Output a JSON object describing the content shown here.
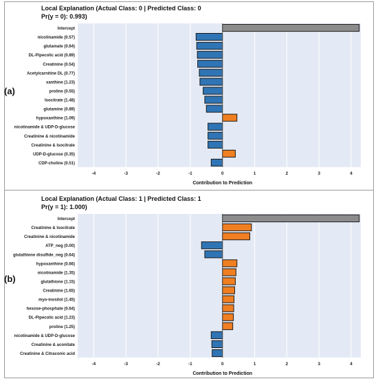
{
  "panels": [
    {
      "panel_label": "(a)",
      "title": "Local Explanation (Actual Class: 0 | Predicted Class: 0",
      "subtitle": "Pr(y = 0): 0.993)"
    },
    {
      "panel_label": "(b)",
      "title": "Local Explanation (Actual Class: 1 | Predicted Class: 1",
      "subtitle": "Pr(y = 1): 1.000)"
    }
  ],
  "colors": {
    "positive": "#f07f21",
    "negative": "#2f75b5",
    "intercept": "#8c8c8c",
    "plot_bg": "#e4eaf5"
  },
  "chart_data": [
    {
      "type": "bar",
      "orientation": "horizontal",
      "title": "Local Explanation (Actual Class: 0 | Predicted Class: 0",
      "subtitle": "Pr(y = 0): 0.993)",
      "xlabel": "Contribution to Prediction",
      "xlim": [
        -4.5,
        4.3
      ],
      "xticks": [
        -4,
        -3,
        -2,
        -1,
        0,
        1,
        2,
        3,
        4
      ],
      "grid": true,
      "categories": [
        "Intercept",
        "nicotinamide (0.57)",
        "glutamate (0.64)",
        "DL-Pipecolic acid (0.89)",
        "Creatinine (0.54)",
        "Acetylcarnitine DL (0.77)",
        "xanthine (1.23)",
        "proline (0.55)",
        "Isocitrate (1.48)",
        "glutamine (0.89)",
        "hypoxanthine (1.09)",
        "nicotinamide & UDP-D-glucose",
        "Creatinine & nicotinamide",
        "Creatinine & Isocitrate",
        "UDP-D-glucose (0.35)",
        "CDP-choline (0.51)"
      ],
      "values": [
        4.25,
        -0.82,
        -0.8,
        -0.78,
        -0.77,
        -0.72,
        -0.7,
        -0.6,
        -0.55,
        -0.5,
        0.45,
        -0.45,
        -0.45,
        -0.45,
        0.4,
        -0.35
      ]
    },
    {
      "type": "bar",
      "orientation": "horizontal",
      "title": "Local Explanation (Actual Class: 1 | Predicted Class: 1",
      "subtitle": "Pr(y = 1): 1.000)",
      "xlabel": "Contribution to Prediction",
      "xlim": [
        -4.5,
        4.3
      ],
      "xticks": [
        -4,
        -3,
        -2,
        -1,
        0,
        1,
        2,
        3,
        4
      ],
      "grid": true,
      "categories": [
        "Intercept",
        "Creatinine & Isocitrate",
        "Creatinine & nicotinamide",
        "ATP_neg (0.00)",
        "glutathione disulfide_neg (0.64)",
        "hypoxanthine (0.66)",
        "nicotinamide (1.35)",
        "glutathione (1.15)",
        "Creatinine (1.65)",
        "myo-inositol (1.45)",
        "hexose-phosphate (0.64)",
        "DL-Pipecolic acid (1.23)",
        "proline (1.25)",
        "nicotinamide & UDP-D-glucose",
        "Creatinine & aconitate",
        "Creatinine & Citraconic acid"
      ],
      "values": [
        4.25,
        0.9,
        0.85,
        -0.65,
        -0.55,
        0.45,
        0.42,
        0.4,
        0.38,
        0.36,
        0.35,
        0.34,
        0.32,
        -0.35,
        -0.33,
        -0.32
      ]
    }
  ]
}
